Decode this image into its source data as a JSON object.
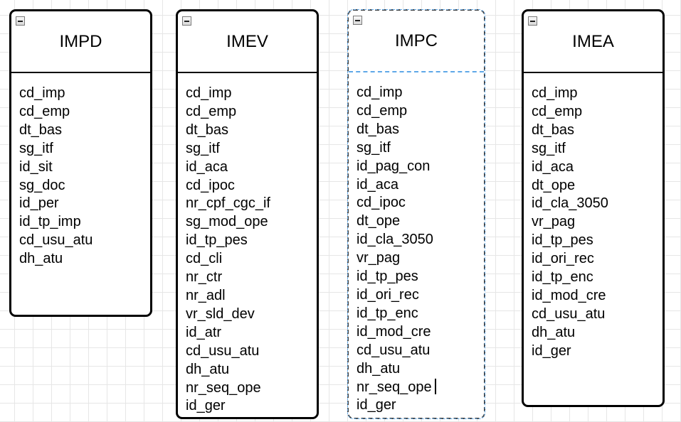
{
  "entities": [
    {
      "name": "IMPD",
      "fields": [
        "cd_imp",
        "cd_emp",
        "dt_bas",
        "sg_itf",
        "id_sit",
        "sg_doc",
        "id_per",
        "id_tp_imp",
        "cd_usu_atu",
        "dh_atu"
      ]
    },
    {
      "name": "IMEV",
      "fields": [
        "cd_imp",
        "cd_emp",
        "dt_bas",
        "sg_itf",
        "id_aca",
        "cd_ipoc",
        "nr_cpf_cgc_if",
        "sg_mod_ope",
        "id_tp_pes",
        "cd_cli",
        "nr_ctr",
        "nr_adl",
        "vr_sld_dev",
        "id_atr",
        "cd_usu_atu",
        "dh_atu",
        "nr_seq_ope",
        "id_ger"
      ]
    },
    {
      "name": "IMPC",
      "fields": [
        "cd_imp",
        "cd_emp",
        "dt_bas",
        "sg_itf",
        "id_pag_con",
        "id_aca",
        "cd_ipoc",
        "dt_ope",
        "id_cla_3050",
        "vr_pag",
        "id_tp_pes",
        "id_ori_rec",
        "id_tp_enc",
        "id_mod_cre",
        "cd_usu_atu",
        "dh_atu",
        "nr_seq_ope",
        "id_ger"
      ]
    },
    {
      "name": "IMEA",
      "fields": [
        "cd_imp",
        "cd_emp",
        "dt_bas",
        "sg_itf",
        "id_aca",
        "dt_ope",
        "id_cla_3050",
        "vr_pag",
        "id_tp_pes",
        "id_ori_rec",
        "id_tp_enc",
        "id_mod_cre",
        "cd_usu_atu",
        "dh_atu",
        "id_ger"
      ]
    }
  ]
}
